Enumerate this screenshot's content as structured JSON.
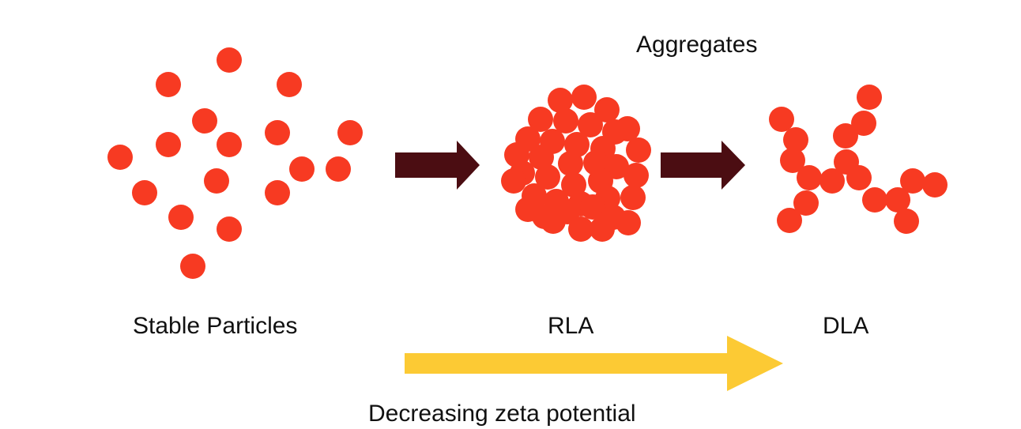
{
  "labels": {
    "aggregates": "Aggregates",
    "stable": "Stable Particles",
    "rla": "RLA",
    "dla": "DLA",
    "zeta": "Decreasing zeta potential"
  },
  "colors": {
    "particle": "#f73a22",
    "process_arrow": "#4b0d12",
    "zeta_arrow": "#fcca34",
    "text": "#111111"
  }
}
